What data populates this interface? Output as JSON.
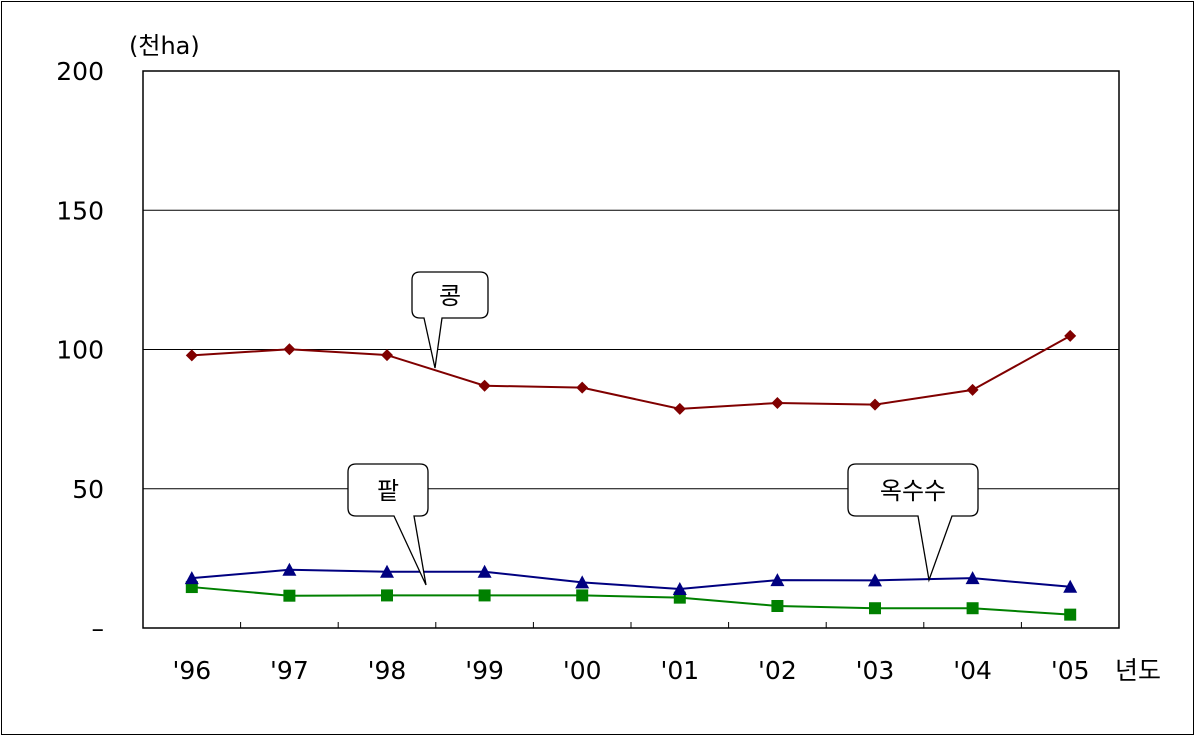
{
  "chart_data": {
    "type": "line",
    "unit_label": "(천ha)",
    "xlabel": "년도",
    "categories": [
      "'96",
      "'97",
      "'98",
      "'99",
      "'00",
      "'01",
      "'02",
      "'03",
      "'04",
      "'05"
    ],
    "ylim": [
      0,
      200
    ],
    "y_ticks": [
      {
        "value": 200,
        "label": "200"
      },
      {
        "value": 150,
        "label": "150"
      },
      {
        "value": 100,
        "label": "100"
      },
      {
        "value": 50,
        "label": "50"
      },
      {
        "value": 0,
        "label": "–"
      }
    ],
    "grid": true,
    "series": [
      {
        "name": "콩",
        "marker": "diamond",
        "color": "#800000",
        "values": [
          97.9,
          100.1,
          98.0,
          87.0,
          86.3,
          78.7,
          80.8,
          80.2,
          85.5,
          104.9
        ]
      },
      {
        "name": "팥",
        "marker": "square",
        "color": "#008000",
        "values": [
          14.7,
          11.6,
          11.7,
          11.7,
          11.7,
          10.9,
          7.9,
          7.1,
          7.1,
          4.8
        ]
      },
      {
        "name": "옥수수",
        "marker": "triangle",
        "color": "#000080",
        "values": [
          17.9,
          20.9,
          20.2,
          20.2,
          16.4,
          14.0,
          17.2,
          17.1,
          17.9,
          14.8
        ]
      }
    ]
  }
}
